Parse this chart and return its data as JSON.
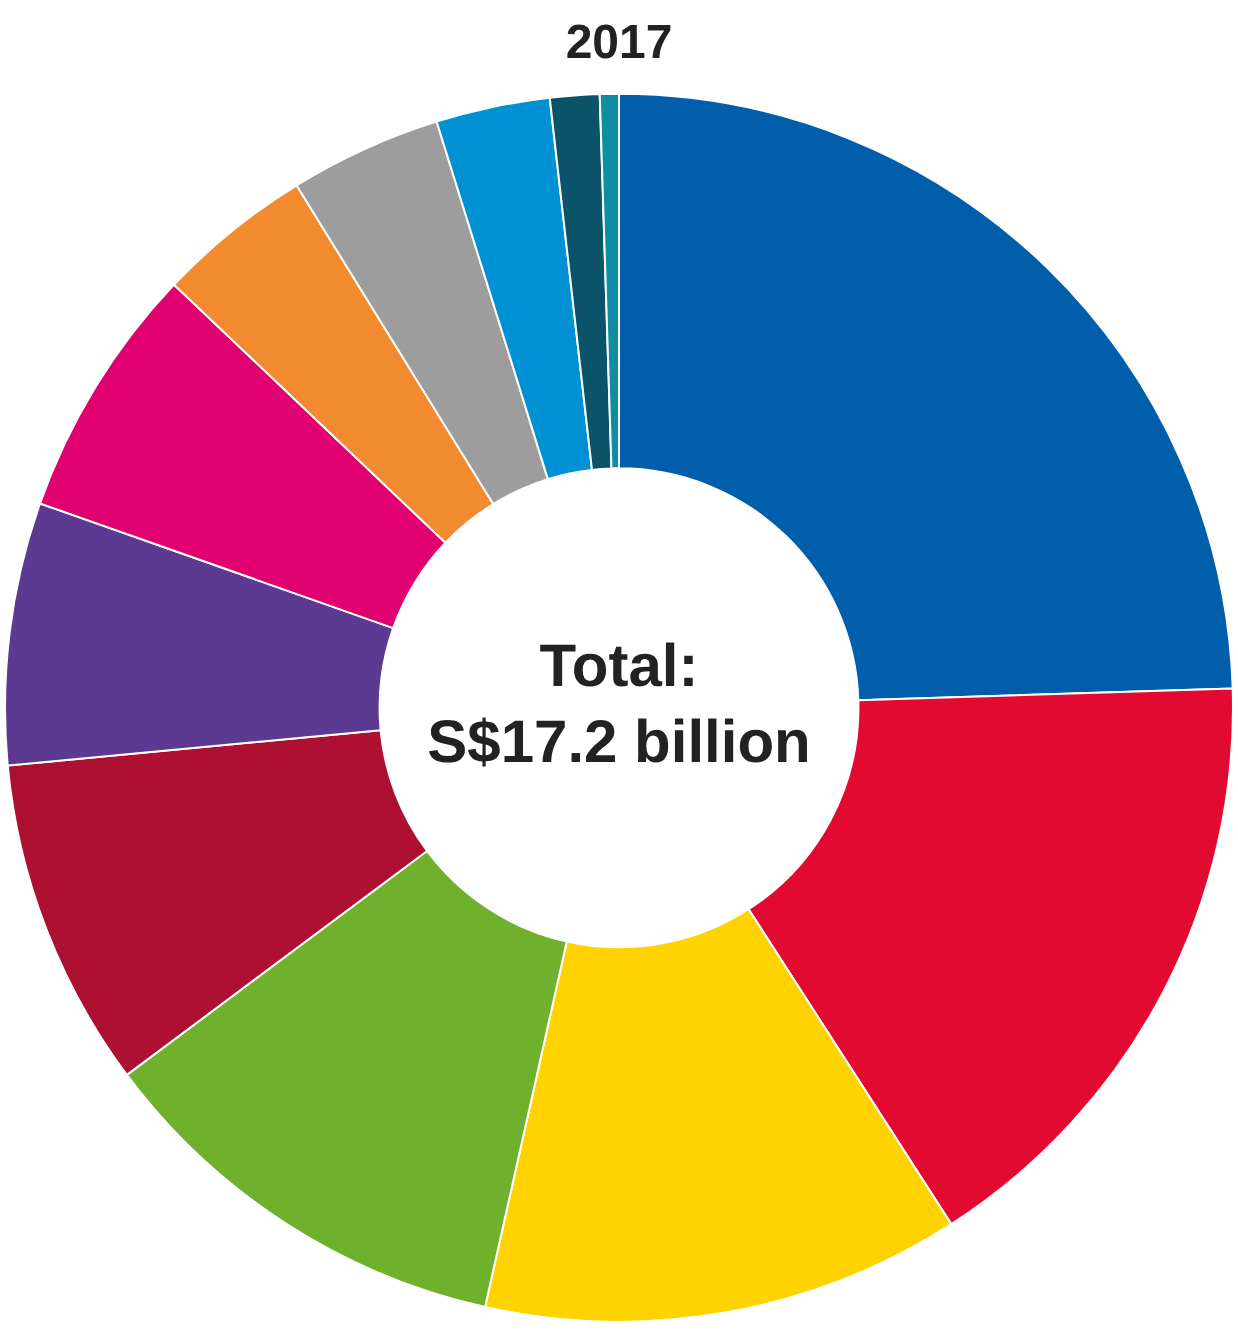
{
  "chart_data": {
    "type": "donut",
    "title": "2017",
    "categories": [
      null,
      null,
      null,
      null,
      null,
      null,
      null,
      null,
      null,
      null,
      null,
      null
    ],
    "values": [
      24.5,
      16.4,
      12.6,
      11.3,
      8.7,
      6.9,
      6.7,
      4.1,
      4.0,
      3.0,
      1.3,
      0.5
    ],
    "colors": [
      "#005eab",
      "#e30a32",
      "#ffd200",
      "#6fb02c",
      "#ad1031",
      "#5c3a91",
      "#e0006f",
      "#f28a30",
      "#9d9d9d",
      "#0090d4",
      "#0b5369",
      "#0e8ea0"
    ],
    "annotations": [
      "Total:",
      "S$17.2 billion"
    ]
  }
}
